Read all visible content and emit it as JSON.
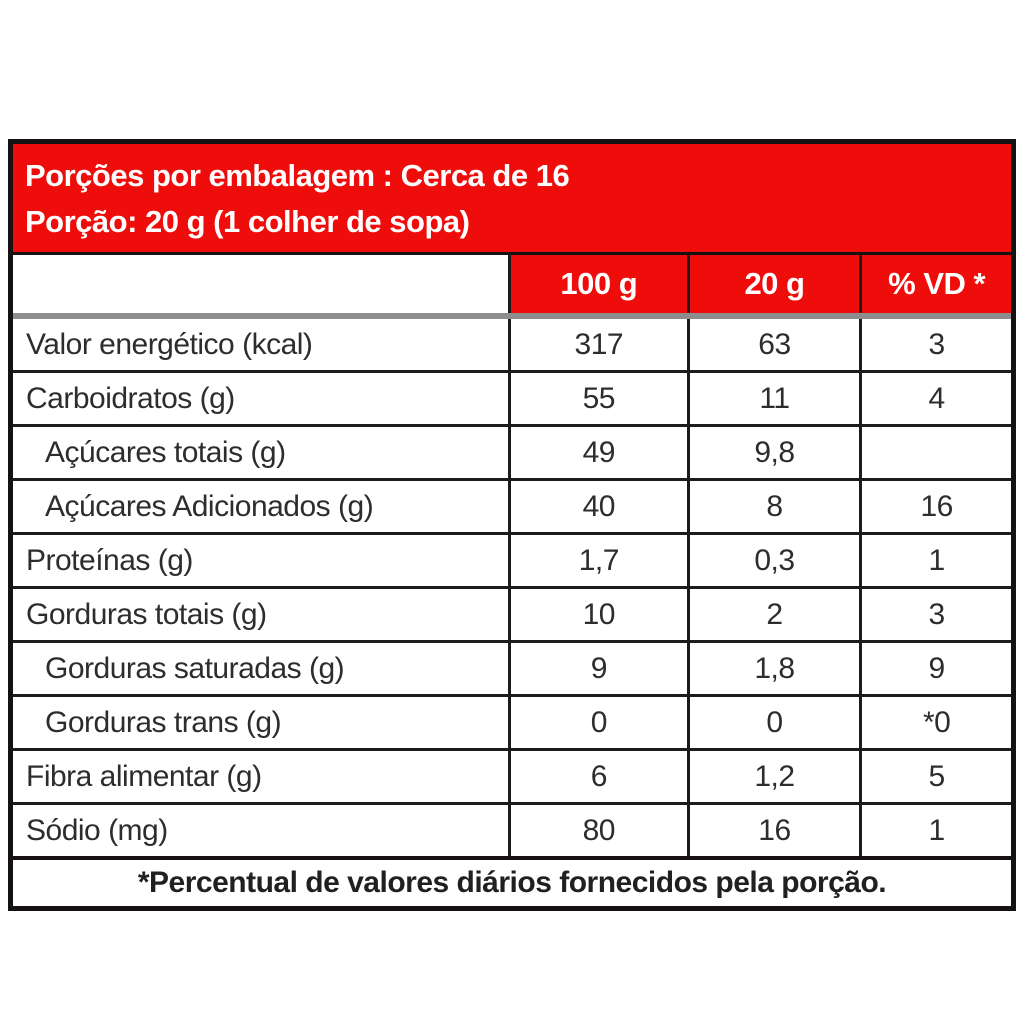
{
  "colors": {
    "accent_red": "#ee0d0b",
    "border_black": "#171212",
    "divider_gray": "#8d8d8d",
    "text_dark": "#2e2c2c",
    "header_text": "#ffffff"
  },
  "title_band": {
    "line1": "Porções por embalagem : Cerca de 16",
    "line2": "Porção: 20 g (1 colher de sopa)"
  },
  "columns": {
    "label": "",
    "per100g": "100 g",
    "per20g": "20 g",
    "vd": "% VD *"
  },
  "rows": [
    {
      "label": "Valor energético (kcal)",
      "indent": false,
      "per100g": "317",
      "per20g": "63",
      "vd": "3"
    },
    {
      "label": "Carboidratos (g)",
      "indent": false,
      "per100g": "55",
      "per20g": "11",
      "vd": "4"
    },
    {
      "label": "Açúcares totais (g)",
      "indent": true,
      "per100g": "49",
      "per20g": "9,8",
      "vd": ""
    },
    {
      "label": "Açúcares Adicionados (g)",
      "indent": true,
      "per100g": "40",
      "per20g": "8",
      "vd": "16"
    },
    {
      "label": "Proteínas (g)",
      "indent": false,
      "per100g": "1,7",
      "per20g": "0,3",
      "vd": "1"
    },
    {
      "label": "Gorduras totais (g)",
      "indent": false,
      "per100g": "10",
      "per20g": "2",
      "vd": "3"
    },
    {
      "label": "Gorduras saturadas (g)",
      "indent": true,
      "per100g": "9",
      "per20g": "1,8",
      "vd": "9"
    },
    {
      "label": "Gorduras trans (g)",
      "indent": true,
      "per100g": "0",
      "per20g": "0",
      "vd": "*0"
    },
    {
      "label": "Fibra alimentar (g)",
      "indent": false,
      "per100g": "6",
      "per20g": "1,2",
      "vd": "5"
    },
    {
      "label": "Sódio (mg)",
      "indent": false,
      "per100g": "80",
      "per20g": "16",
      "vd": "1"
    }
  ],
  "footer": {
    "note": "*Percentual de valores diários fornecidos pela porção."
  }
}
